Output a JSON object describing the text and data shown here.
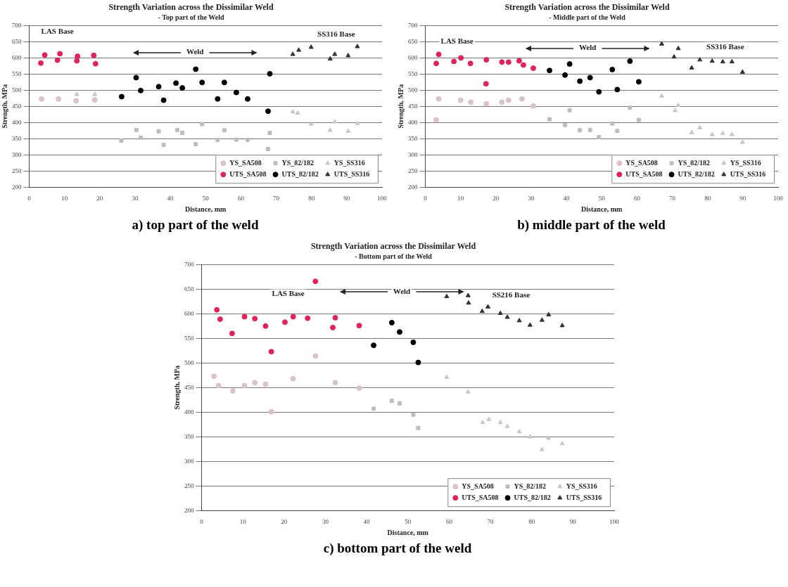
{
  "chart_data": [
    {
      "type": "scatter",
      "title": "Strength Variation across the Dissimilar Weld",
      "subtitle": "- Top part of the Weld",
      "xlabel": "Distance, mm",
      "ylabel": "Strength, MPa",
      "xlim": [
        0,
        100
      ],
      "xticks": [
        0,
        10,
        20,
        30,
        40,
        50,
        60,
        70,
        80,
        90,
        100
      ],
      "ylim": [
        200,
        700
      ],
      "yticks": [
        200,
        250,
        300,
        350,
        400,
        450,
        500,
        550,
        600,
        650,
        700
      ],
      "grid": "y",
      "legend": "bottom right",
      "series": [
        {
          "name": "YS_SA508",
          "color": "#d9c3c9",
          "marker": "circle",
          "x": [
            3.5,
            8.3,
            13.3,
            18.6
          ],
          "values": [
            473,
            473,
            467,
            470
          ]
        },
        {
          "name": "YS_82/182",
          "color": "#bdbdbd",
          "marker": "square",
          "x": [
            26.1,
            30.4,
            31.6,
            36.7,
            38.1,
            42.0,
            43.4,
            47.2,
            49.0,
            53.4,
            55.3,
            58.7,
            61.9,
            68.2,
            67.7
          ],
          "values": [
            344,
            377,
            353,
            373,
            331,
            377,
            368,
            333,
            395,
            346,
            376,
            347,
            346,
            368,
            318
          ]
        },
        {
          "name": "YS_SS316",
          "color": "#c8c8c8",
          "marker": "triangle",
          "x": [
            13.5,
            18.6,
            74.7,
            76.1,
            79.9,
            85.3,
            86.6,
            90.4,
            93.0
          ],
          "values": [
            487,
            487,
            433,
            429,
            395,
            376,
            402,
            373,
            397
          ]
        },
        {
          "name": "UTS_SA508",
          "color": "#e0245a",
          "marker": "circle",
          "x": [
            3.3,
            4.4,
            8.0,
            8.7,
            13.5,
            13.7,
            18.3,
            18.8
          ],
          "values": [
            584,
            609,
            593,
            613,
            591,
            605,
            608,
            582
          ]
        },
        {
          "name": "UTS_82/182",
          "color": "#000000",
          "marker": "circle",
          "x": [
            26.2,
            30.3,
            31.6,
            36.7,
            38.1,
            41.6,
            43.4,
            47.2,
            49.0,
            53.4,
            55.3,
            58.7,
            61.9,
            68.2,
            67.7
          ],
          "values": [
            480,
            539,
            499,
            511,
            469,
            522,
            507,
            565,
            524,
            473,
            524,
            493,
            473,
            551,
            435
          ]
        },
        {
          "name": "UTS_SS316",
          "color": "#333333",
          "marker": "triangle",
          "x": [
            74.7,
            76.4,
            79.9,
            85.3,
            86.6,
            90.4,
            93.0
          ],
          "values": [
            611,
            624,
            633,
            597,
            611,
            607,
            635
          ]
        }
      ],
      "annotations": [
        "LAS Base",
        "Weld",
        "SS316 Base",
        "a) top part of the weld"
      ]
    },
    {
      "type": "scatter",
      "title": "Strength Variation across the Dissimilar Weld",
      "subtitle": "- Middle part of the Weld",
      "xlabel": "Distance, mm",
      "ylabel": "Strength, MPa",
      "xlim": [
        0,
        100
      ],
      "xticks": [
        0,
        10,
        20,
        30,
        40,
        50,
        60,
        70,
        80,
        90,
        100
      ],
      "ylim": [
        200,
        700
      ],
      "yticks": [
        200,
        250,
        300,
        350,
        400,
        450,
        500,
        550,
        600,
        650,
        700
      ],
      "grid": "y",
      "legend": "bottom right",
      "series": [
        {
          "name": "YS_SA508",
          "color": "#d9c3c9",
          "marker": "circle",
          "x": [
            3.1,
            3.8,
            10.0,
            12.9,
            17.3,
            21.7,
            23.6,
            27.4,
            30.6
          ],
          "values": [
            408,
            473,
            469,
            463,
            458,
            463,
            469,
            473,
            451
          ]
        },
        {
          "name": "YS_82/182",
          "color": "#bdbdbd",
          "marker": "square",
          "x": [
            35.2,
            39.6,
            40.9,
            43.8,
            46.7,
            49.2,
            53.0,
            54.4,
            58.0,
            60.5
          ],
          "values": [
            410,
            392,
            438,
            376,
            377,
            355,
            397,
            374,
            446,
            408
          ]
        },
        {
          "name": "YS_SS316",
          "color": "#c8c8c8",
          "marker": "triangle",
          "x": [
            67.0,
            70.8,
            71.7,
            75.5,
            77.8,
            81.3,
            84.3,
            86.9,
            89.9
          ],
          "values": [
            482,
            437,
            453,
            369,
            384,
            363,
            366,
            363,
            339
          ]
        },
        {
          "name": "UTS_SA508",
          "color": "#e0245a",
          "marker": "circle",
          "x": [
            3.1,
            3.8,
            8.1,
            10.1,
            12.8,
            17.3,
            17.2,
            21.7,
            23.6,
            26.6,
            27.8,
            30.6
          ],
          "values": [
            583,
            611,
            589,
            600,
            583,
            594,
            520,
            587,
            587,
            591,
            578,
            568
          ]
        },
        {
          "name": "UTS_82/182",
          "color": "#000000",
          "marker": "circle",
          "x": [
            35.2,
            39.6,
            40.9,
            43.8,
            46.7,
            49.2,
            53.0,
            54.4,
            58.0,
            60.5
          ],
          "values": [
            561,
            547,
            581,
            528,
            539,
            495,
            564,
            502,
            590,
            526
          ]
        },
        {
          "name": "UTS_SS316",
          "color": "#333333",
          "marker": "triangle",
          "x": [
            67.0,
            71.7,
            70.5,
            75.5,
            77.8,
            81.3,
            84.3,
            86.9,
            89.9
          ],
          "values": [
            643,
            629,
            603,
            569,
            594,
            590,
            588,
            588,
            556
          ]
        }
      ],
      "annotations": [
        "LAS Base",
        "Weld",
        "SS316 Base",
        "b) middle part of the weld"
      ]
    },
    {
      "type": "scatter",
      "title": "Strength Variation across the Dissimilar Weld",
      "subtitle": "- Bottom part of the Weld",
      "xlabel": "Distance, mm",
      "ylabel": "Strength, MPa",
      "xlim": [
        0,
        100
      ],
      "xticks": [
        0,
        10,
        20,
        30,
        40,
        50,
        60,
        70,
        80,
        90,
        100
      ],
      "ylim": [
        200,
        700
      ],
      "yticks": [
        200,
        250,
        300,
        350,
        400,
        450,
        500,
        550,
        600,
        650,
        700
      ],
      "grid": "y",
      "legend": "bottom right",
      "series": [
        {
          "name": "YS_SA508",
          "color": "#d9c3c9",
          "marker": "circle",
          "x": [
            3.0,
            4.1,
            7.6,
            10.4,
            12.9,
            15.5,
            16.9,
            22.2,
            27.6,
            32.4,
            38.2
          ],
          "values": [
            473,
            454,
            443,
            454,
            460,
            457,
            401,
            468,
            514,
            460,
            449
          ]
        },
        {
          "name": "YS_82/182",
          "color": "#bdbdbd",
          "marker": "square",
          "x": [
            41.7,
            46.1,
            48.0,
            51.3,
            52.5
          ],
          "values": [
            407,
            423,
            418,
            395,
            368
          ]
        },
        {
          "name": "YS_SS316",
          "color": "#c8c8c8",
          "marker": "triangle",
          "x": [
            59.4,
            64.6,
            68.1,
            69.6,
            72.4,
            74.1,
            77.0,
            79.6,
            82.5,
            84.1,
            87.4
          ],
          "values": [
            471,
            441,
            379,
            385,
            379,
            371,
            360,
            350,
            324,
            347,
            336
          ]
        },
        {
          "name": "UTS_SA508",
          "color": "#e0245a",
          "marker": "circle",
          "x": [
            3.7,
            4.5,
            7.4,
            10.4,
            12.9,
            15.5,
            16.9,
            20.2,
            22.2,
            25.7,
            27.6,
            31.8,
            32.4,
            38.2
          ],
          "values": [
            608,
            589,
            560,
            594,
            590,
            575,
            523,
            583,
            594,
            591,
            666,
            572,
            592,
            576
          ]
        },
        {
          "name": "UTS_82/182",
          "color": "#000000",
          "marker": "circle",
          "x": [
            41.7,
            46.1,
            48.0,
            51.3,
            52.5
          ],
          "values": [
            536,
            582,
            563,
            542,
            501
          ]
        },
        {
          "name": "UTS_SS316",
          "color": "#333333",
          "marker": "triangle",
          "x": [
            59.4,
            64.6,
            64.7,
            68.0,
            69.4,
            72.4,
            74.1,
            77.0,
            79.6,
            82.5,
            84.1,
            87.4
          ],
          "values": [
            635,
            637,
            622,
            605,
            614,
            601,
            593,
            586,
            577,
            587,
            598,
            576
          ]
        }
      ],
      "annotations": [
        "LAS Base",
        "Weld",
        "SS216 Base",
        "c) bottom part of the weld"
      ]
    }
  ]
}
